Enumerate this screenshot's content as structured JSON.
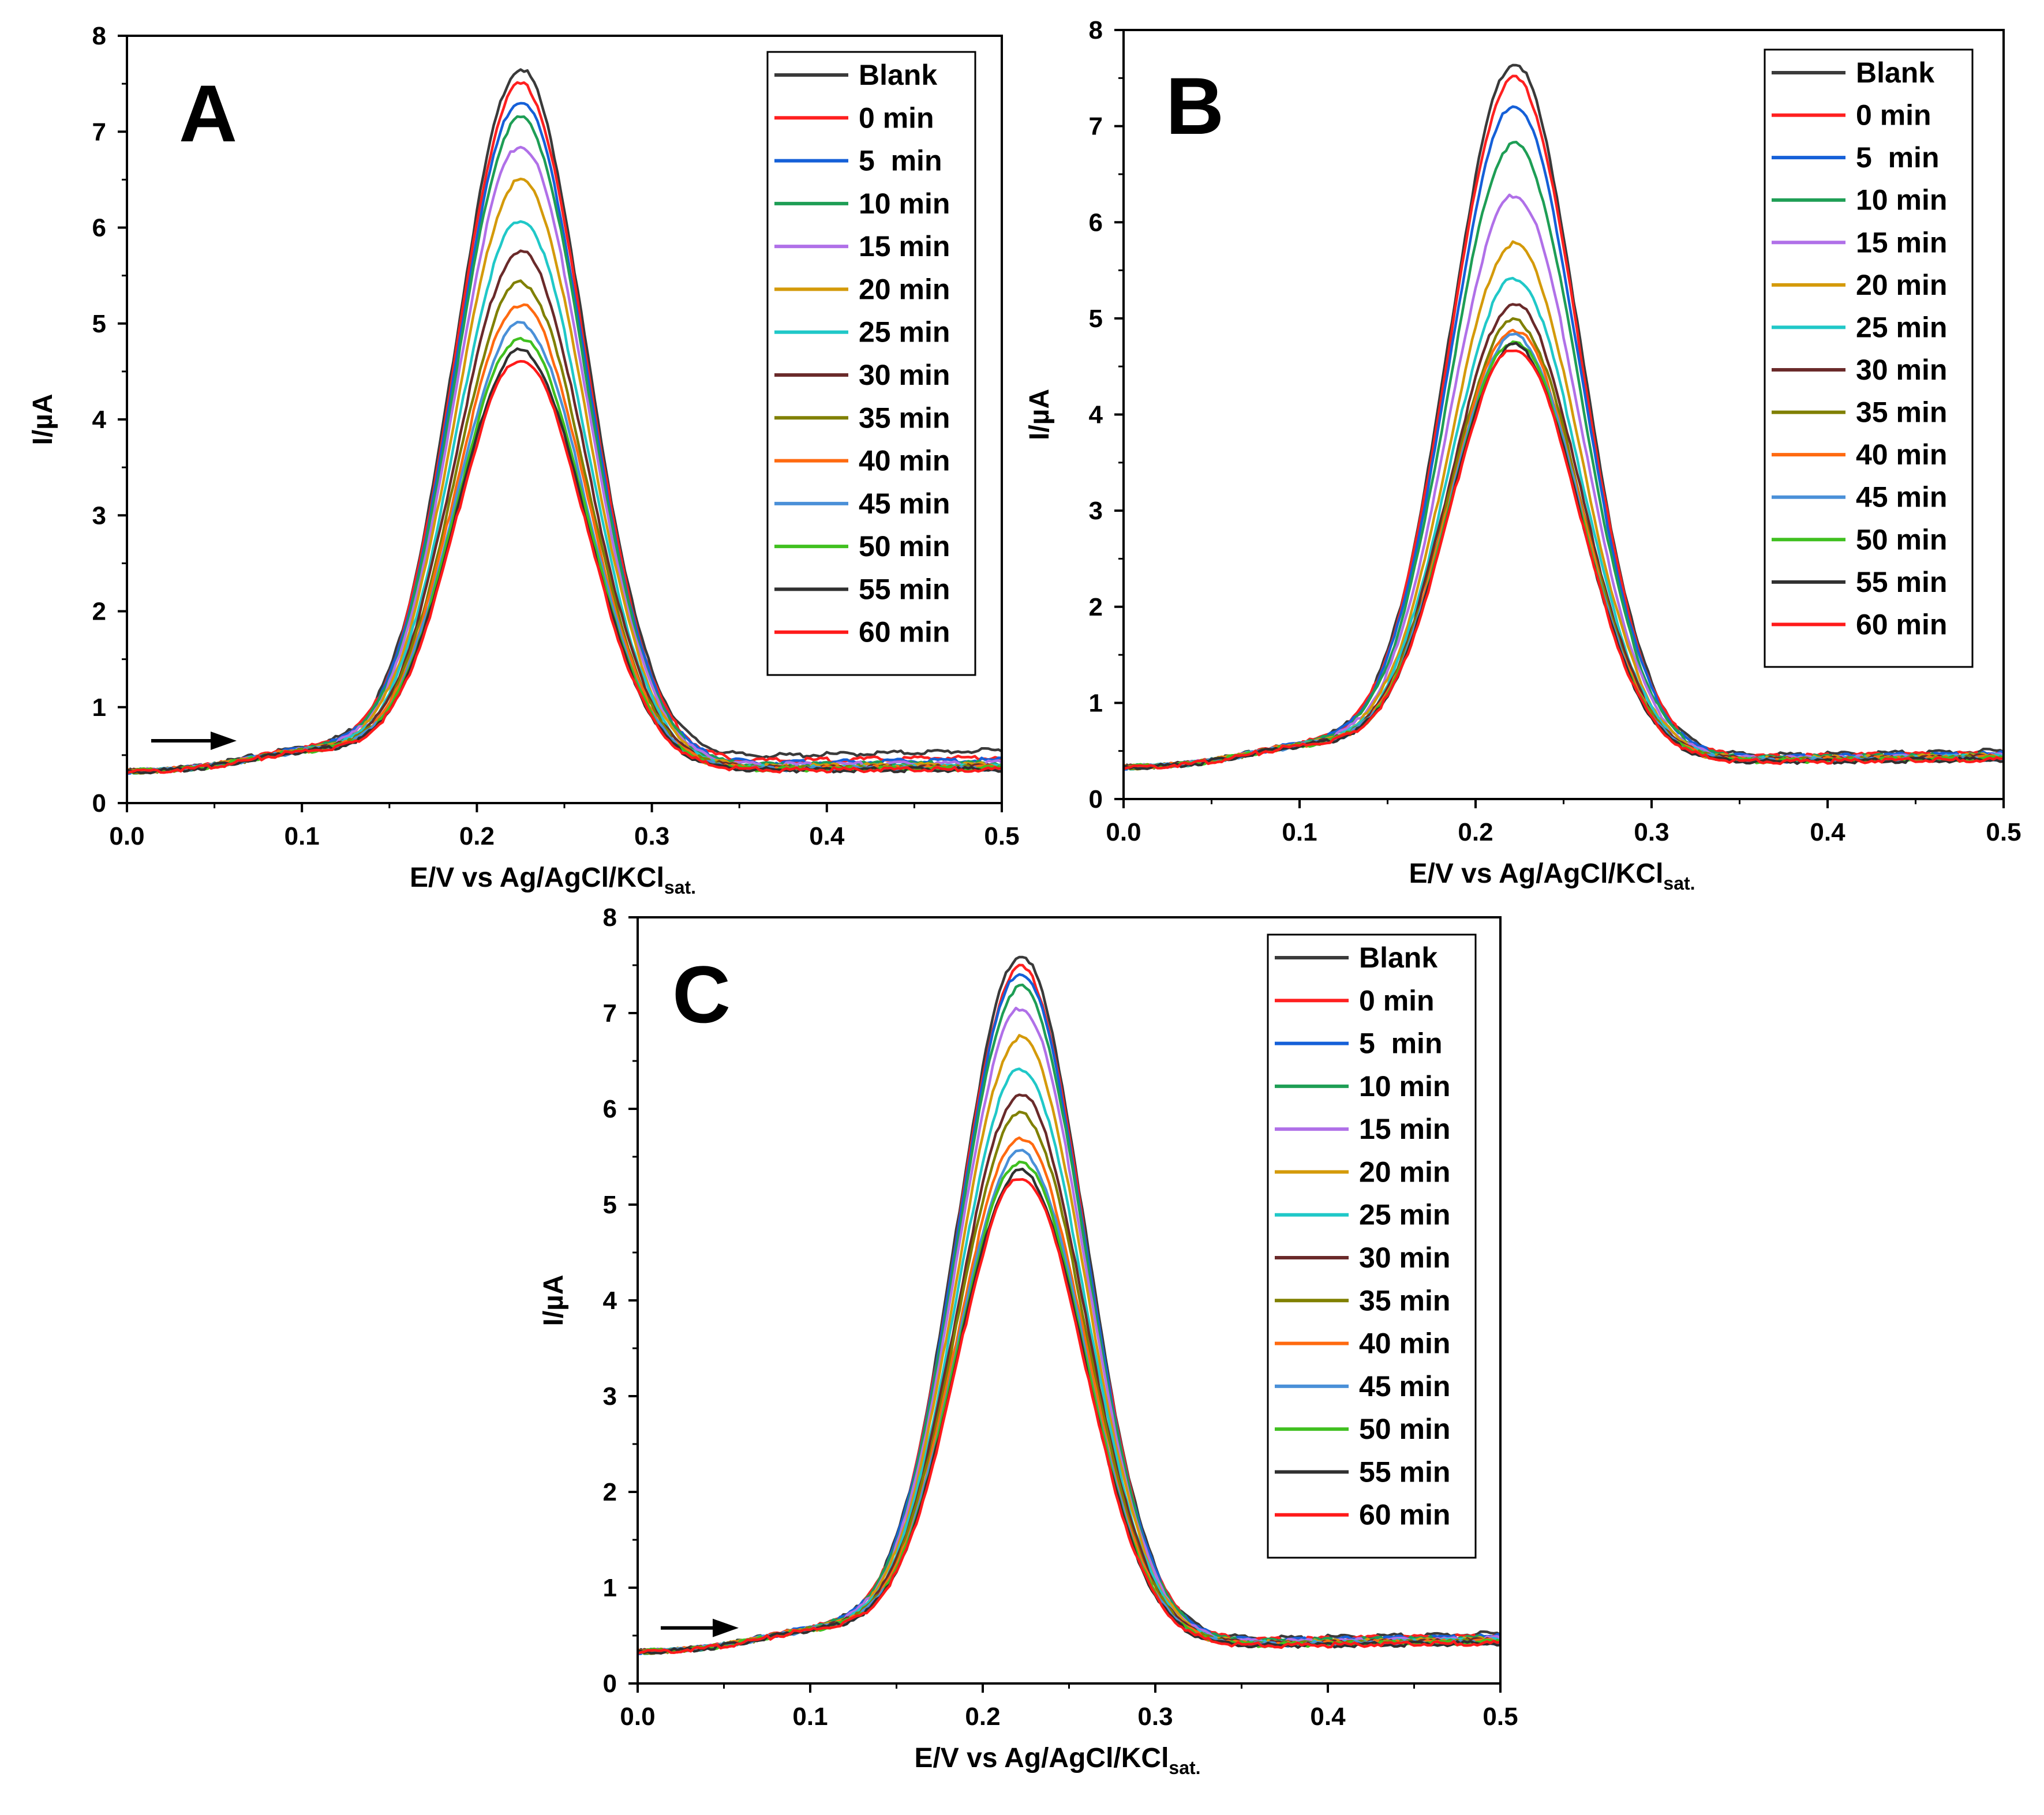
{
  "chart_data": [
    {
      "type": "line",
      "panel_label": "A",
      "xlabel": "E/V vs Ag/AgCl/KCl",
      "xlabel_sub": "sat.",
      "ylabel": "I/µA",
      "xlim": [
        0.0,
        0.5
      ],
      "ylim": [
        0,
        8
      ],
      "xticks": [
        "0.0",
        "0.1",
        "0.2",
        "0.3",
        "0.4",
        "0.5"
      ],
      "yticks": [
        "0",
        "1",
        "2",
        "3",
        "4",
        "5",
        "6",
        "7",
        "8"
      ],
      "peak_potential": 0.225,
      "series": [
        {
          "name": "Blank",
          "peak": 7.65,
          "tail": 0.55
        },
        {
          "name": "0 min",
          "peak": 7.5,
          "tail": 0.48
        },
        {
          "name": "5  min",
          "peak": 7.32,
          "tail": 0.45
        },
        {
          "name": "10 min",
          "peak": 7.15,
          "tail": 0.42
        },
        {
          "name": "15 min",
          "peak": 6.85,
          "tail": 0.42
        },
        {
          "name": "20 min",
          "peak": 6.5,
          "tail": 0.4
        },
        {
          "name": "25 min",
          "peak": 6.08,
          "tail": 0.38
        },
        {
          "name": "30 min",
          "peak": 5.75,
          "tail": 0.38
        },
        {
          "name": "35 min",
          "peak": 5.43,
          "tail": 0.37
        },
        {
          "name": "40 min",
          "peak": 5.2,
          "tail": 0.37
        },
        {
          "name": "45 min",
          "peak": 5.0,
          "tail": 0.36
        },
        {
          "name": "50 min",
          "peak": 4.85,
          "tail": 0.36
        },
        {
          "name": "55 min",
          "peak": 4.72,
          "tail": 0.35
        },
        {
          "name": "60 min",
          "peak": 4.62,
          "tail": 0.35
        }
      ]
    },
    {
      "type": "line",
      "panel_label": "B",
      "xlabel": "E/V vs Ag/AgCl/KCl",
      "xlabel_sub": "sat.",
      "ylabel": "I/µA",
      "xlim": [
        0.0,
        0.5
      ],
      "ylim": [
        0,
        8
      ],
      "xticks": [
        "0.0",
        "0.1",
        "0.2",
        "0.3",
        "0.4",
        "0.5"
      ],
      "yticks": [
        "0",
        "1",
        "2",
        "3",
        "4",
        "5",
        "6",
        "7",
        "8"
      ],
      "peak_potential": 0.222,
      "series": [
        {
          "name": "Blank",
          "peak": 7.65,
          "tail": 0.5
        },
        {
          "name": "0 min",
          "peak": 7.5,
          "tail": 0.48
        },
        {
          "name": "5  min",
          "peak": 7.22,
          "tail": 0.47
        },
        {
          "name": "10 min",
          "peak": 6.82,
          "tail": 0.46
        },
        {
          "name": "15 min",
          "peak": 6.28,
          "tail": 0.45
        },
        {
          "name": "20 min",
          "peak": 5.78,
          "tail": 0.45
        },
        {
          "name": "25 min",
          "peak": 5.42,
          "tail": 0.44
        },
        {
          "name": "30 min",
          "peak": 5.15,
          "tail": 0.44
        },
        {
          "name": "35 min",
          "peak": 4.98,
          "tail": 0.43
        },
        {
          "name": "40 min",
          "peak": 4.88,
          "tail": 0.43
        },
        {
          "name": "45 min",
          "peak": 4.82,
          "tail": 0.42
        },
        {
          "name": "50 min",
          "peak": 4.76,
          "tail": 0.42
        },
        {
          "name": "55 min",
          "peak": 4.72,
          "tail": 0.41
        },
        {
          "name": "60 min",
          "peak": 4.68,
          "tail": 0.41
        }
      ]
    },
    {
      "type": "line",
      "panel_label": "C",
      "xlabel": "E/V vs Ag/AgCl/KCl",
      "xlabel_sub": "sat.",
      "ylabel": "I/µA",
      "xlim": [
        0.0,
        0.5
      ],
      "ylim": [
        0,
        8
      ],
      "xticks": [
        "0.0",
        "0.1",
        "0.2",
        "0.3",
        "0.4",
        "0.5"
      ],
      "yticks": [
        "0",
        "1",
        "2",
        "3",
        "4",
        "5",
        "6",
        "7",
        "8"
      ],
      "peak_potential": 0.222,
      "series": [
        {
          "name": "Blank",
          "peak": 7.6,
          "tail": 0.52
        },
        {
          "name": "0 min",
          "peak": 7.48,
          "tail": 0.5
        },
        {
          "name": "5  min",
          "peak": 7.42,
          "tail": 0.49
        },
        {
          "name": "10 min",
          "peak": 7.28,
          "tail": 0.48
        },
        {
          "name": "15 min",
          "peak": 7.05,
          "tail": 0.47
        },
        {
          "name": "20 min",
          "peak": 6.75,
          "tail": 0.46
        },
        {
          "name": "25 min",
          "peak": 6.42,
          "tail": 0.45
        },
        {
          "name": "30 min",
          "peak": 6.15,
          "tail": 0.45
        },
        {
          "name": "35 min",
          "peak": 5.95,
          "tail": 0.44
        },
        {
          "name": "40 min",
          "peak": 5.7,
          "tail": 0.44
        },
        {
          "name": "45 min",
          "peak": 5.55,
          "tail": 0.43
        },
        {
          "name": "50 min",
          "peak": 5.45,
          "tail": 0.43
        },
        {
          "name": "55 min",
          "peak": 5.35,
          "tail": 0.42
        },
        {
          "name": "60 min",
          "peak": 5.28,
          "tail": 0.42
        }
      ]
    }
  ],
  "series_colors": [
    "#3a3a3a",
    "#ff2020",
    "#1560d8",
    "#1e9e55",
    "#b070e8",
    "#d49a0a",
    "#20c8c8",
    "#6a2a2a",
    "#808000",
    "#ff6a10",
    "#4a90d8",
    "#40c020",
    "#303030",
    "#ff1a1a"
  ]
}
